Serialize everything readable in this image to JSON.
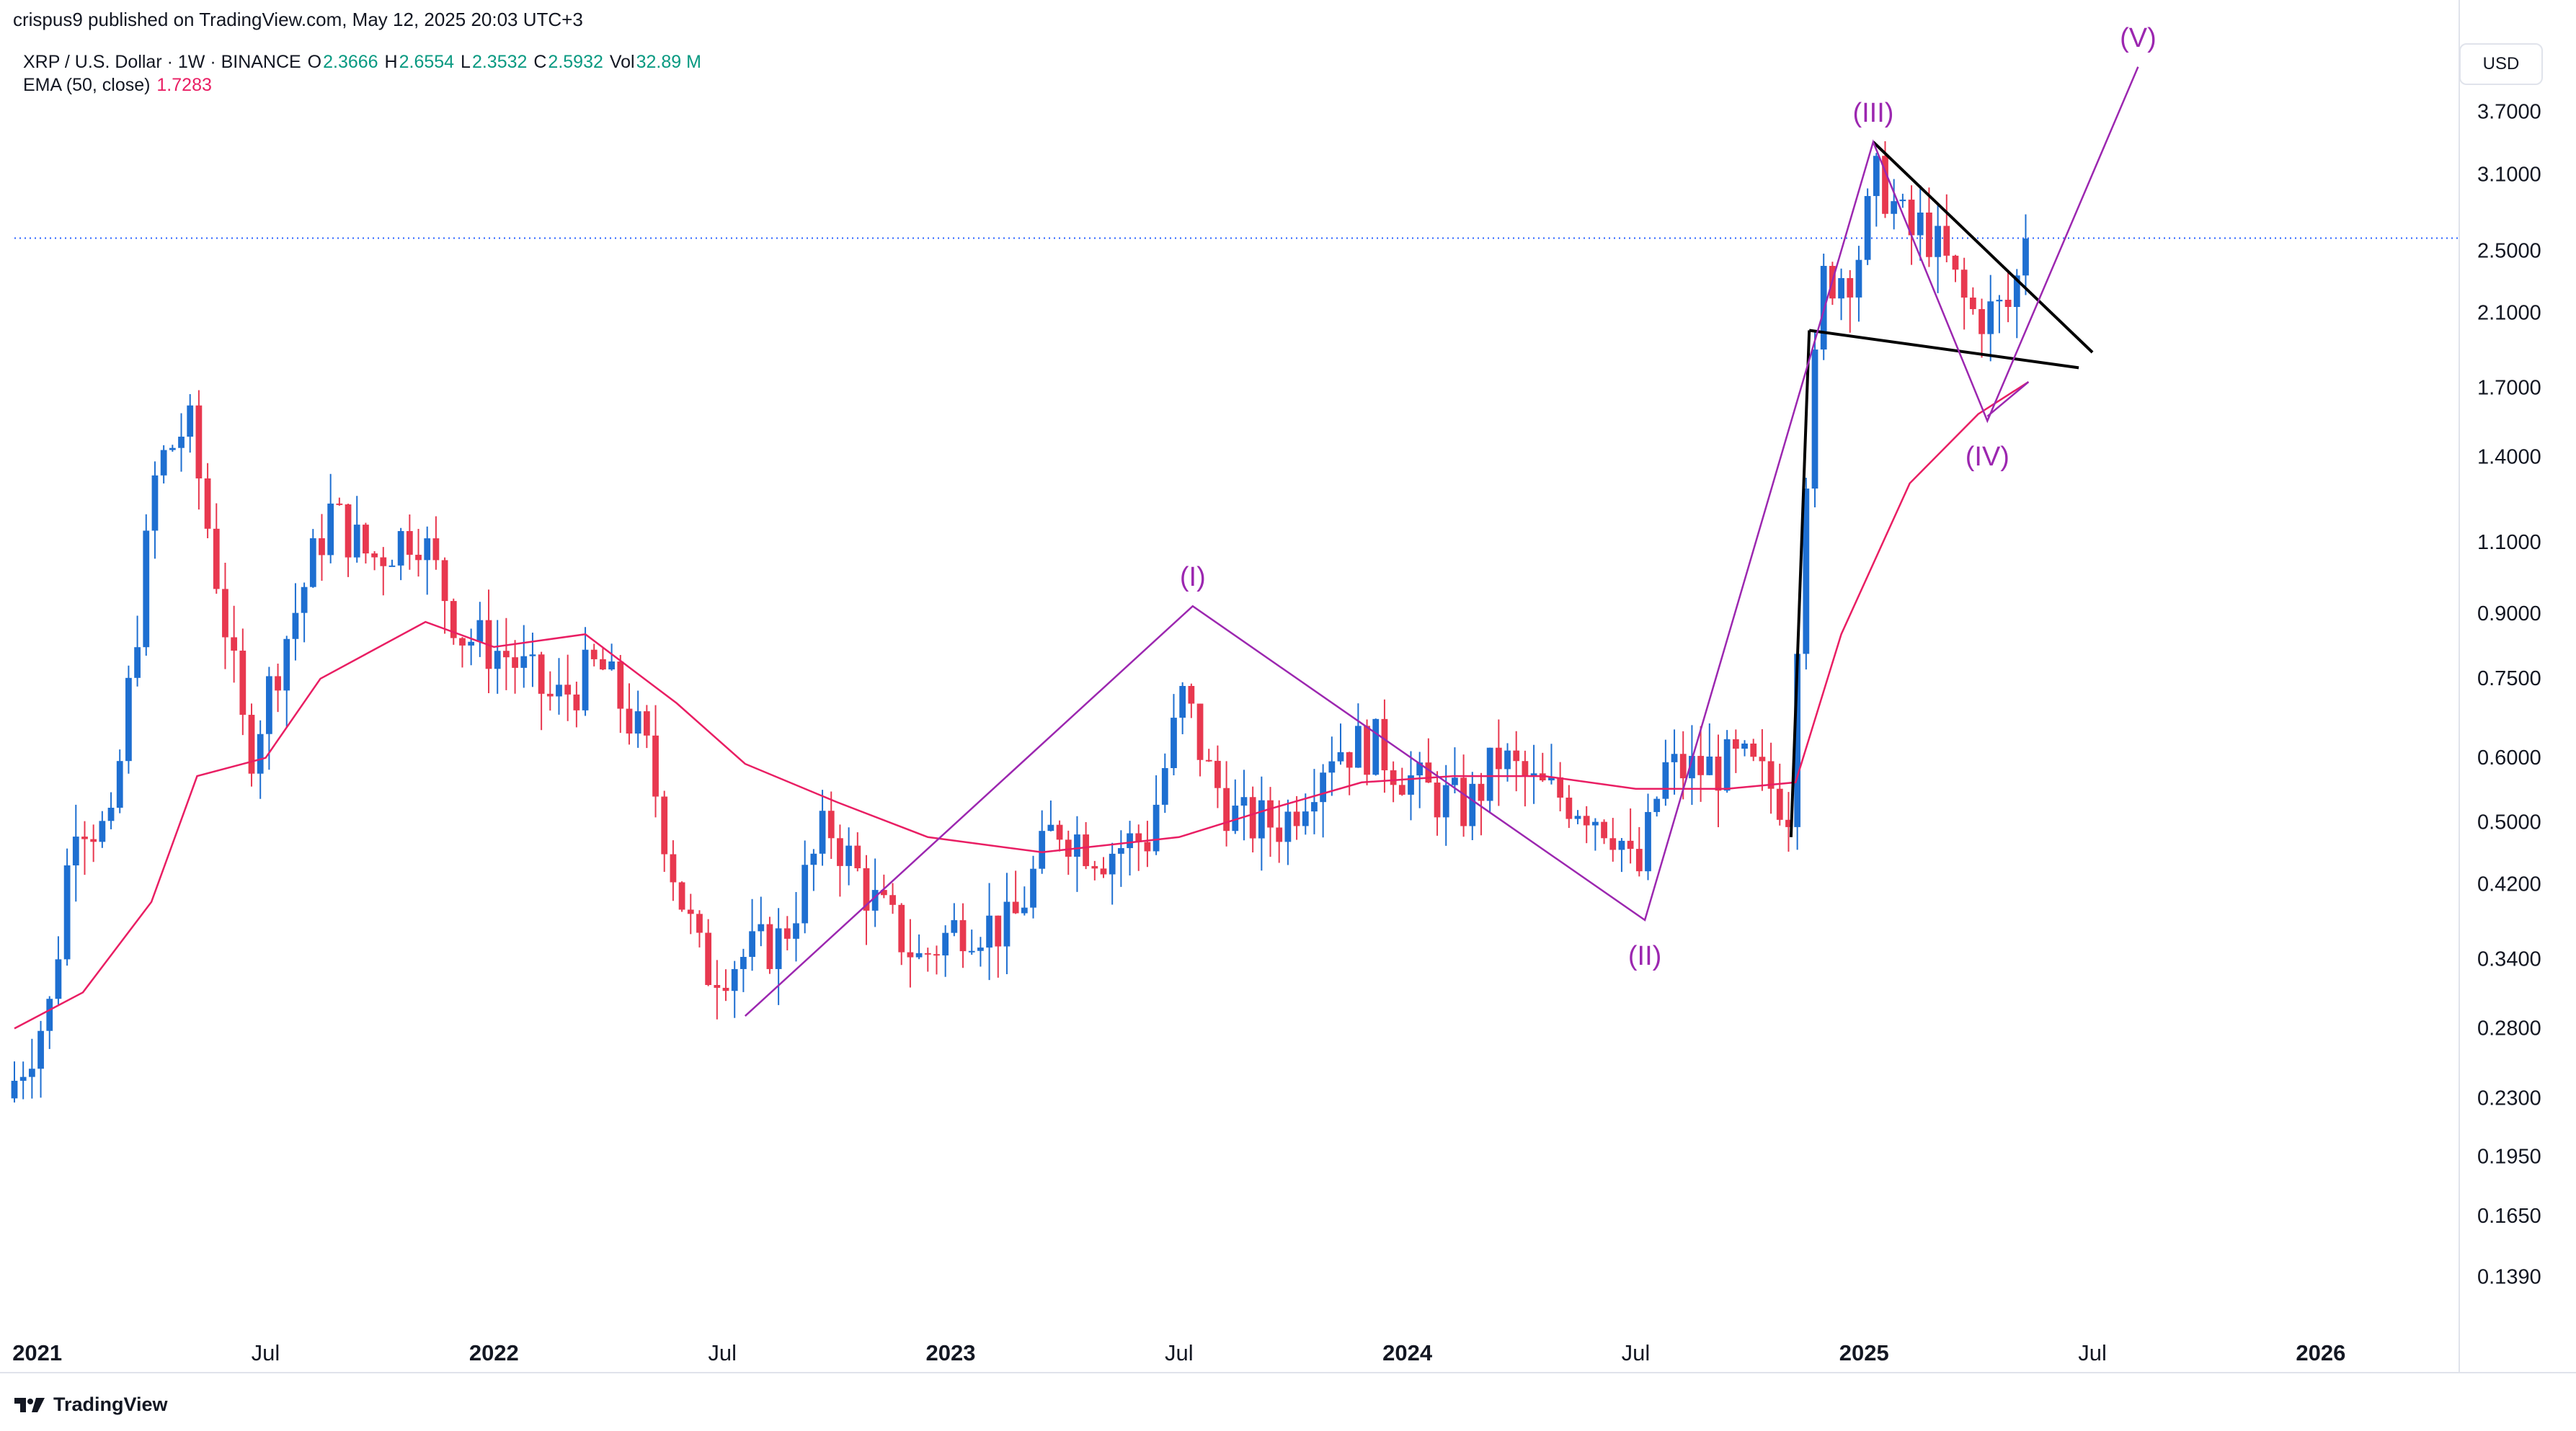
{
  "published": "crispus9 published on TradingView.com, May 12, 2025 20:03 UTC+3",
  "symbol": "XRP / U.S. Dollar · 1W · BINANCE",
  "ohlc": {
    "o_label": "O",
    "o": "2.3666",
    "h_label": "H",
    "h": "2.6554",
    "l_label": "L",
    "l": "2.3532",
    "c_label": "C",
    "c": "2.5932",
    "vol_label": "Vol",
    "vol": "32.89 M"
  },
  "ema": {
    "label": "EMA (50, close)",
    "value": "1.7283"
  },
  "currency": "USD",
  "brand": "TradingView",
  "colors": {
    "up": "#1e6fd1",
    "down": "#e8384f",
    "ema": "#e91e63",
    "wave": "#9c27b0",
    "trend": "#000000",
    "price_line": "#2962ff"
  },
  "chart_data": {
    "type": "candlestick",
    "title": "XRP / U.S. Dollar · 1W · BINANCE",
    "y_scale": "log",
    "ylim": [
      0.12,
      4.6
    ],
    "x_range": [
      2020.95,
      2026.3
    ],
    "y_ticks": [
      "3.7000",
      "3.1000",
      "2.5000",
      "2.1000",
      "1.7000",
      "1.4000",
      "1.1000",
      "0.9000",
      "0.7500",
      "0.6000",
      "0.5000",
      "0.4200",
      "0.3400",
      "0.2800",
      "0.2300",
      "0.1950",
      "0.1650",
      "0.1390"
    ],
    "x_ticks": [
      {
        "label": "2021",
        "t": 2021.0,
        "bold": true
      },
      {
        "label": "Jul",
        "t": 2021.5,
        "bold": false
      },
      {
        "label": "2022",
        "t": 2022.0,
        "bold": true
      },
      {
        "label": "Jul",
        "t": 2022.5,
        "bold": false
      },
      {
        "label": "2023",
        "t": 2023.0,
        "bold": true
      },
      {
        "label": "Jul",
        "t": 2023.5,
        "bold": false
      },
      {
        "label": "2024",
        "t": 2024.0,
        "bold": true
      },
      {
        "label": "Jul",
        "t": 2024.5,
        "bold": false
      },
      {
        "label": "2025",
        "t": 2025.0,
        "bold": true
      },
      {
        "label": "Jul",
        "t": 2025.5,
        "bold": false
      },
      {
        "label": "2026",
        "t": 2026.0,
        "bold": true
      }
    ],
    "candle_anchors": [
      [
        2020.95,
        0.23
      ],
      [
        2021.05,
        0.3
      ],
      [
        2021.1,
        0.52
      ],
      [
        2021.18,
        0.48
      ],
      [
        2021.28,
        1.35
      ],
      [
        2021.35,
        1.55
      ],
      [
        2021.42,
        0.95
      ],
      [
        2021.48,
        0.6
      ],
      [
        2021.55,
        0.8
      ],
      [
        2021.66,
        1.2
      ],
      [
        2021.75,
        1.05
      ],
      [
        2021.85,
        1.15
      ],
      [
        2021.95,
        0.85
      ],
      [
        2022.05,
        0.8
      ],
      [
        2022.15,
        0.7
      ],
      [
        2022.25,
        0.78
      ],
      [
        2022.35,
        0.62
      ],
      [
        2022.42,
        0.42
      ],
      [
        2022.48,
        0.33
      ],
      [
        2022.55,
        0.34
      ],
      [
        2022.65,
        0.36
      ],
      [
        2022.75,
        0.5
      ],
      [
        2022.85,
        0.4
      ],
      [
        2022.95,
        0.34
      ],
      [
        2023.05,
        0.38
      ],
      [
        2023.15,
        0.37
      ],
      [
        2023.25,
        0.5
      ],
      [
        2023.35,
        0.46
      ],
      [
        2023.45,
        0.48
      ],
      [
        2023.53,
        0.72
      ],
      [
        2023.58,
        0.58
      ],
      [
        2023.65,
        0.5
      ],
      [
        2023.75,
        0.5
      ],
      [
        2023.85,
        0.62
      ],
      [
        2023.95,
        0.62
      ],
      [
        2024.05,
        0.55
      ],
      [
        2024.15,
        0.52
      ],
      [
        2024.22,
        0.6
      ],
      [
        2024.3,
        0.55
      ],
      [
        2024.4,
        0.53
      ],
      [
        2024.48,
        0.49
      ],
      [
        2024.52,
        0.42
      ],
      [
        2024.58,
        0.58
      ],
      [
        2024.65,
        0.58
      ],
      [
        2024.75,
        0.59
      ],
      [
        2024.82,
        0.55
      ],
      [
        2024.86,
        0.52
      ],
      [
        2024.88,
        1.15
      ],
      [
        2024.93,
        2.3
      ],
      [
        2025.0,
        2.4
      ],
      [
        2025.05,
        3.1
      ],
      [
        2025.12,
        2.6
      ],
      [
        2025.15,
        2.7
      ],
      [
        2025.2,
        2.4
      ],
      [
        2025.25,
        2.1
      ],
      [
        2025.3,
        2.1
      ],
      [
        2025.35,
        2.15
      ],
      [
        2025.36,
        2.59
      ]
    ],
    "ema_anchors": [
      [
        2020.95,
        0.28
      ],
      [
        2021.1,
        0.31
      ],
      [
        2021.25,
        0.4
      ],
      [
        2021.35,
        0.57
      ],
      [
        2021.5,
        0.6
      ],
      [
        2021.62,
        0.75
      ],
      [
        2021.85,
        0.88
      ],
      [
        2022.0,
        0.82
      ],
      [
        2022.2,
        0.85
      ],
      [
        2022.4,
        0.7
      ],
      [
        2022.55,
        0.59
      ],
      [
        2022.75,
        0.53
      ],
      [
        2022.95,
        0.48
      ],
      [
        2023.2,
        0.46
      ],
      [
        2023.5,
        0.48
      ],
      [
        2023.7,
        0.52
      ],
      [
        2023.9,
        0.56
      ],
      [
        2024.1,
        0.57
      ],
      [
        2024.3,
        0.57
      ],
      [
        2024.5,
        0.55
      ],
      [
        2024.7,
        0.55
      ],
      [
        2024.85,
        0.56
      ],
      [
        2024.95,
        0.85
      ],
      [
        2025.1,
        1.3
      ],
      [
        2025.25,
        1.58
      ],
      [
        2025.36,
        1.73
      ]
    ],
    "current_price": 2.5932,
    "wave_path": [
      [
        2022.55,
        0.29
      ],
      [
        2023.53,
        0.92
      ],
      [
        2024.52,
        0.38
      ],
      [
        2025.02,
        3.4
      ],
      [
        2025.27,
        1.55
      ],
      [
        2025.6,
        4.2
      ]
    ],
    "wave_labels": [
      {
        "label": "(I)",
        "t": 2023.53,
        "price": 0.92
      },
      {
        "label": "(II)",
        "t": 2024.52,
        "price": 0.38
      },
      {
        "label": "(III)",
        "t": 2025.02,
        "price": 3.4
      },
      {
        "label": "(IV)",
        "t": 2025.27,
        "price": 1.55
      },
      {
        "label": "(V)",
        "t": 2025.6,
        "price": 4.2
      }
    ],
    "pole": [
      [
        2024.84,
        0.48
      ],
      [
        2024.88,
        2.0
      ]
    ],
    "flag_upper": [
      [
        2025.02,
        3.4
      ],
      [
        2025.5,
        1.88
      ]
    ],
    "flag_lower": [
      [
        2024.88,
        2.0
      ],
      [
        2025.47,
        1.8
      ]
    ],
    "ema_rise": [
      [
        2025.27,
        1.57
      ],
      [
        2025.36,
        1.73
      ]
    ]
  }
}
